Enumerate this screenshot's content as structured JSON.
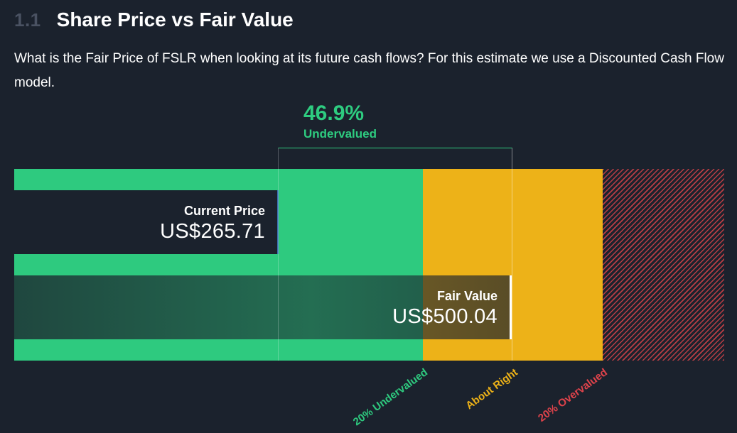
{
  "header": {
    "section_number": "1.1",
    "title": "Share Price vs Fair Value",
    "description": "What is the Fair Price of FSLR when looking at its future cash flows? For this estimate we use a Discounted Cash Flow model."
  },
  "chart_data": {
    "type": "bar",
    "title": "Share Price vs Fair Value",
    "ticker": "FSLR",
    "categories": [
      "Current Price",
      "Fair Value"
    ],
    "values": [
      265.71,
      500.04
    ],
    "value_labels": [
      "US$265.71",
      "US$500.04"
    ],
    "currency": "US$",
    "difference": {
      "percent": "46.9%",
      "label": "Undervalued",
      "value": 46.9
    },
    "zones": [
      {
        "label": "20% Undervalued",
        "color": "#2eca7f"
      },
      {
        "label": "About Right",
        "color": "#edb218"
      },
      {
        "label": "20% Overvalued",
        "color": "#e0434b"
      }
    ],
    "grid": false,
    "legend": "none"
  }
}
